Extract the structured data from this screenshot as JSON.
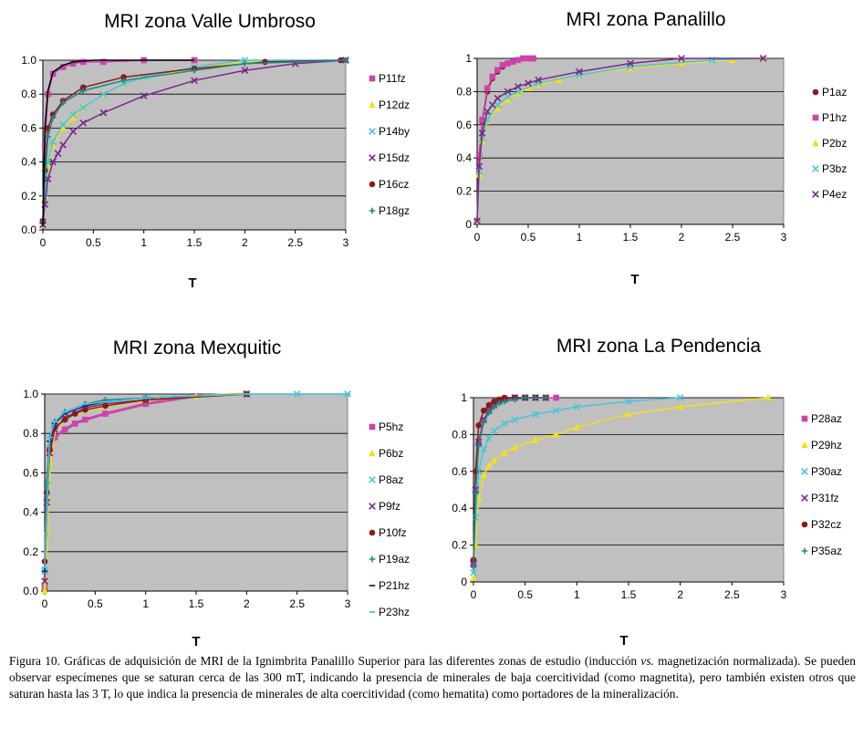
{
  "figure_label": "Figura 10.",
  "caption": {
    "part1": "Gráficas de adquisición de MRI de la Ignimbrita Panalillo Superior para las diferentes zonas de estudio (inducción ",
    "vs": "vs.",
    "part2": " magnetización normalizada). Se pueden observar especímenes que se saturan cerca de las 300 mT, indicando la presencia de minerales de baja coercitividad (como magnetita), pero también existen otros que saturan hasta las 3 T, lo que indica la presencia de minerales de alta coercitividad (como hematita) como portadores de la mineralización."
  },
  "chart_data": [
    {
      "type": "line",
      "title": "MRI zona Valle Umbroso",
      "xlabel": "T",
      "ylabel": "",
      "xlim": [
        0,
        3
      ],
      "ylim": [
        0,
        1.0
      ],
      "xticks": [
        "0",
        "0.5",
        "1",
        "1.5",
        "2",
        "2.5",
        "3"
      ],
      "yticks": [
        "0.0",
        "0.2",
        "0.4",
        "0.6",
        "0.8",
        "1.0"
      ],
      "grid": true,
      "legend": "right",
      "series": [
        {
          "name": "P11fz",
          "color": "#cc44aa",
          "marker": "square",
          "x": [
            0,
            0.02,
            0.05,
            0.1,
            0.2,
            0.3,
            0.4,
            0.6,
            1.0,
            1.5
          ],
          "y": [
            0.05,
            0.5,
            0.8,
            0.92,
            0.96,
            0.98,
            0.99,
            0.99,
            1.0,
            1.0
          ]
        },
        {
          "name": "P12dz",
          "color": "#f0e020",
          "marker": "triangle",
          "x": [
            0,
            0.02,
            0.05,
            0.1,
            0.2,
            0.3,
            0.4,
            0.6,
            0.8,
            1.0,
            1.5,
            2.0,
            3.0
          ],
          "y": [
            0.03,
            0.2,
            0.38,
            0.5,
            0.6,
            0.66,
            0.72,
            0.8,
            0.86,
            0.9,
            0.95,
            0.99,
            1.0
          ]
        },
        {
          "name": "P14by",
          "color": "#4cc4d8",
          "marker": "x",
          "x": [
            0,
            0.02,
            0.05,
            0.1,
            0.2,
            0.3,
            0.4,
            0.6,
            0.8,
            1.0,
            1.5,
            2.0,
            3.0
          ],
          "y": [
            0.03,
            0.22,
            0.4,
            0.52,
            0.62,
            0.68,
            0.72,
            0.8,
            0.86,
            0.9,
            0.96,
            1.0,
            1.0
          ]
        },
        {
          "name": "P15dz",
          "color": "#7a2a8a",
          "marker": "x",
          "x": [
            0,
            0.02,
            0.05,
            0.1,
            0.15,
            0.2,
            0.3,
            0.4,
            0.6,
            1.0,
            1.5,
            2.0,
            2.5,
            3.0
          ],
          "y": [
            0.03,
            0.15,
            0.3,
            0.4,
            0.45,
            0.5,
            0.58,
            0.63,
            0.69,
            0.79,
            0.88,
            0.94,
            0.98,
            1.0
          ]
        },
        {
          "name": "P16cz",
          "color": "#8a1a1a",
          "marker": "circle",
          "x": [
            0,
            0.02,
            0.05,
            0.1,
            0.2,
            0.4,
            0.8,
            1.5,
            2.2,
            2.95
          ],
          "y": [
            0.05,
            0.35,
            0.6,
            0.68,
            0.76,
            0.84,
            0.9,
            0.95,
            0.99,
            1.0
          ]
        },
        {
          "name": "P18gz",
          "color": "#1a8a8a",
          "marker": "plus",
          "x": [
            0,
            0.02,
            0.05,
            0.1,
            0.2,
            0.4,
            0.8,
            1.5,
            2.0,
            3.0
          ],
          "y": [
            0.05,
            0.3,
            0.55,
            0.66,
            0.75,
            0.82,
            0.88,
            0.94,
            0.98,
            1.0
          ]
        },
        {
          "name": "",
          "color": "#000000",
          "marker": "none",
          "x": [
            0,
            0.02,
            0.05,
            0.1,
            0.2,
            0.3,
            0.5,
            1.0,
            1.5
          ],
          "y": [
            0.02,
            0.6,
            0.82,
            0.93,
            0.97,
            0.99,
            1.0,
            1.0,
            1.0
          ]
        }
      ]
    },
    {
      "type": "line",
      "title": "MRI zona Panalillo",
      "xlabel": "T",
      "ylabel": "",
      "xlim": [
        0,
        3
      ],
      "ylim": [
        0,
        1
      ],
      "xticks": [
        "0",
        "0.5",
        "1",
        "1.5",
        "2",
        "2.5",
        "3"
      ],
      "yticks": [
        "0",
        "0.2",
        "0.4",
        "0.6",
        "0.8",
        "1"
      ],
      "grid": true,
      "legend": "right",
      "series": [
        {
          "name": "P1az",
          "color": "#8a1a1a",
          "marker": "circle",
          "x": [
            0,
            0.02,
            0.05,
            0.1,
            0.15,
            0.2,
            0.25,
            0.3,
            0.35,
            0.4,
            0.45,
            0.5,
            0.55
          ],
          "y": [
            0.02,
            0.4,
            0.62,
            0.8,
            0.88,
            0.92,
            0.95,
            0.97,
            0.98,
            0.99,
            1.0,
            1.0,
            1.0
          ]
        },
        {
          "name": "P1hz",
          "color": "#cc44aa",
          "marker": "square",
          "x": [
            0,
            0.02,
            0.05,
            0.1,
            0.15,
            0.2,
            0.25,
            0.3,
            0.35,
            0.4,
            0.45,
            0.5,
            0.55
          ],
          "y": [
            0.02,
            0.42,
            0.63,
            0.82,
            0.89,
            0.93,
            0.96,
            0.97,
            0.98,
            0.99,
            1.0,
            1.0,
            1.0
          ]
        },
        {
          "name": "P2bz",
          "color": "#f0e020",
          "marker": "triangle",
          "x": [
            0,
            0.02,
            0.05,
            0.1,
            0.2,
            0.3,
            0.4,
            0.5,
            0.6,
            0.8,
            1.0,
            1.5,
            2.0,
            2.5,
            2.8
          ],
          "y": [
            0.02,
            0.3,
            0.5,
            0.62,
            0.7,
            0.75,
            0.79,
            0.82,
            0.84,
            0.87,
            0.9,
            0.94,
            0.97,
            0.99,
            1.0
          ]
        },
        {
          "name": "P3bz",
          "color": "#4cc4d8",
          "marker": "x",
          "x": [
            0,
            0.02,
            0.05,
            0.1,
            0.2,
            0.3,
            0.4,
            0.6,
            1.0,
            1.5,
            2.3,
            2.8
          ],
          "y": [
            0.02,
            0.32,
            0.52,
            0.63,
            0.72,
            0.77,
            0.8,
            0.85,
            0.9,
            0.95,
            0.99,
            1.0
          ]
        },
        {
          "name": "P4ez",
          "color": "#7a2a8a",
          "marker": "x",
          "x": [
            0,
            0.02,
            0.05,
            0.1,
            0.15,
            0.2,
            0.3,
            0.4,
            0.5,
            0.6,
            1.0,
            1.5,
            2.0,
            2.8
          ],
          "y": [
            0.02,
            0.35,
            0.55,
            0.68,
            0.72,
            0.76,
            0.8,
            0.83,
            0.85,
            0.87,
            0.92,
            0.97,
            1.0,
            1.0
          ]
        }
      ]
    },
    {
      "type": "line",
      "title": "MRI zona Mexquitic",
      "xlabel": "T",
      "ylabel": "",
      "xlim": [
        0,
        3
      ],
      "ylim": [
        0,
        1
      ],
      "xticks": [
        "0",
        "0.5",
        "1",
        "1.5",
        "2",
        "2.5",
        "3"
      ],
      "yticks": [
        "0.0",
        "0.2",
        "0.4",
        "0.6",
        "0.8",
        "1.0"
      ],
      "grid": true,
      "legend": "right",
      "series": [
        {
          "name": "P5hz",
          "color": "#cc44aa",
          "marker": "square",
          "x": [
            0,
            0.02,
            0.05,
            0.1,
            0.2,
            0.3,
            0.4,
            0.6,
            1.0,
            1.5,
            2.0
          ],
          "y": [
            0.02,
            0.5,
            0.7,
            0.78,
            0.82,
            0.85,
            0.87,
            0.9,
            0.95,
            0.99,
            1.0
          ]
        },
        {
          "name": "P6bz",
          "color": "#f0e020",
          "marker": "triangle",
          "x": [
            0,
            0.02,
            0.05,
            0.1,
            0.2,
            0.4,
            0.6,
            1.0,
            1.5,
            2.0
          ],
          "y": [
            0.0,
            0.3,
            0.65,
            0.82,
            0.88,
            0.92,
            0.94,
            0.97,
            0.99,
            1.0
          ]
        },
        {
          "name": "P8az",
          "color": "#4cc4d8",
          "marker": "x",
          "x": [
            0,
            0.02,
            0.05,
            0.1,
            0.2,
            0.4,
            0.6,
            1.0,
            2.0,
            2.5,
            3.0
          ],
          "y": [
            0.1,
            0.5,
            0.75,
            0.85,
            0.9,
            0.94,
            0.96,
            0.98,
            1.0,
            1.0,
            1.0
          ]
        },
        {
          "name": "P9fz",
          "color": "#7a2a8a",
          "marker": "x",
          "x": [
            0,
            0.02,
            0.05,
            0.1,
            0.2,
            0.4,
            0.6,
            1.0,
            2.0
          ],
          "y": [
            0.05,
            0.45,
            0.7,
            0.82,
            0.88,
            0.93,
            0.95,
            0.97,
            1.0
          ]
        },
        {
          "name": "P10fz",
          "color": "#8a1a1a",
          "marker": "circle",
          "x": [
            0,
            0.02,
            0.05,
            0.1,
            0.2,
            0.3,
            0.4,
            0.6,
            1.0,
            2.0
          ],
          "y": [
            0.15,
            0.5,
            0.72,
            0.83,
            0.87,
            0.9,
            0.92,
            0.94,
            0.97,
            1.0
          ]
        },
        {
          "name": "P19az",
          "color": "#1a8a8a",
          "marker": "plus",
          "x": [
            0,
            0.02,
            0.05,
            0.1,
            0.2,
            0.4,
            0.6,
            1.0,
            2.0
          ],
          "y": [
            0.1,
            0.55,
            0.78,
            0.86,
            0.91,
            0.95,
            0.97,
            0.98,
            1.0
          ]
        },
        {
          "name": "P21hz",
          "color": "#1a2a8a",
          "marker": "dash",
          "x": [
            0,
            0.05,
            0.1,
            0.2,
            0.4,
            0.6,
            1.0,
            2.0
          ],
          "y": [
            0.1,
            0.76,
            0.85,
            0.9,
            0.94,
            0.96,
            0.98,
            1.0
          ]
        },
        {
          "name": "P23hz",
          "color": "#4cc4d8",
          "marker": "dash",
          "x": [
            0,
            0.05,
            0.1,
            0.2,
            0.4,
            0.6,
            0.8,
            1.0,
            2.0,
            3.0
          ],
          "y": [
            0.12,
            0.78,
            0.86,
            0.91,
            0.95,
            0.96,
            0.97,
            0.98,
            1.0,
            1.0
          ]
        }
      ]
    },
    {
      "type": "line",
      "title": "MRI zona La Pendencia",
      "xlabel": "T",
      "ylabel": "",
      "xlim": [
        0,
        3
      ],
      "ylim": [
        0,
        1
      ],
      "xticks": [
        "0",
        "0.5",
        "1",
        "1.5",
        "2",
        "2.5",
        "3"
      ],
      "yticks": [
        "0",
        "0.2",
        "0.4",
        "0.6",
        "0.8",
        "1"
      ],
      "grid": true,
      "legend": "right",
      "series": [
        {
          "name": "P28az",
          "color": "#cc44aa",
          "marker": "square",
          "x": [
            0,
            0.02,
            0.05,
            0.1,
            0.15,
            0.2,
            0.25,
            0.3,
            0.4,
            0.5,
            0.6,
            0.7,
            0.8
          ],
          "y": [
            0.1,
            0.5,
            0.75,
            0.88,
            0.93,
            0.96,
            0.98,
            0.99,
            1.0,
            1.0,
            1.0,
            1.0,
            1.0
          ]
        },
        {
          "name": "P29hz",
          "color": "#f0e020",
          "marker": "triangle",
          "x": [
            0,
            0.02,
            0.05,
            0.1,
            0.15,
            0.2,
            0.3,
            0.4,
            0.6,
            0.8,
            1.0,
            1.5,
            2.0,
            2.85
          ],
          "y": [
            0.02,
            0.2,
            0.45,
            0.58,
            0.63,
            0.66,
            0.7,
            0.73,
            0.77,
            0.8,
            0.84,
            0.91,
            0.95,
            1.0
          ]
        },
        {
          "name": "P30az",
          "color": "#4cc4d8",
          "marker": "x",
          "x": [
            0,
            0.02,
            0.05,
            0.1,
            0.15,
            0.2,
            0.3,
            0.4,
            0.6,
            0.8,
            1.0,
            1.5,
            2.0
          ],
          "y": [
            0.05,
            0.35,
            0.6,
            0.72,
            0.78,
            0.82,
            0.86,
            0.88,
            0.91,
            0.93,
            0.95,
            0.98,
            1.0
          ]
        },
        {
          "name": "P31fz",
          "color": "#7a2a8a",
          "marker": "x",
          "x": [
            0,
            0.02,
            0.05,
            0.1,
            0.15,
            0.2,
            0.25,
            0.3,
            0.4,
            0.5,
            0.6,
            0.7
          ],
          "y": [
            0.1,
            0.5,
            0.76,
            0.88,
            0.93,
            0.96,
            0.98,
            0.99,
            1.0,
            1.0,
            1.0,
            1.0
          ]
        },
        {
          "name": "P32cz",
          "color": "#8a1a1a",
          "marker": "circle",
          "x": [
            0,
            0.02,
            0.05,
            0.1,
            0.15,
            0.2,
            0.25,
            0.3,
            0.4,
            0.5,
            0.6,
            0.7
          ],
          "y": [
            0.12,
            0.6,
            0.85,
            0.93,
            0.96,
            0.98,
            0.99,
            1.0,
            1.0,
            1.0,
            1.0,
            1.0
          ]
        },
        {
          "name": "P35az",
          "color": "#1a8a8a",
          "marker": "plus",
          "x": [
            0,
            0.02,
            0.05,
            0.1,
            0.15,
            0.2,
            0.25,
            0.3,
            0.4,
            0.5,
            0.6,
            0.7
          ],
          "y": [
            0.08,
            0.48,
            0.74,
            0.87,
            0.92,
            0.95,
            0.97,
            0.98,
            0.99,
            1.0,
            1.0,
            1.0
          ]
        }
      ]
    }
  ]
}
